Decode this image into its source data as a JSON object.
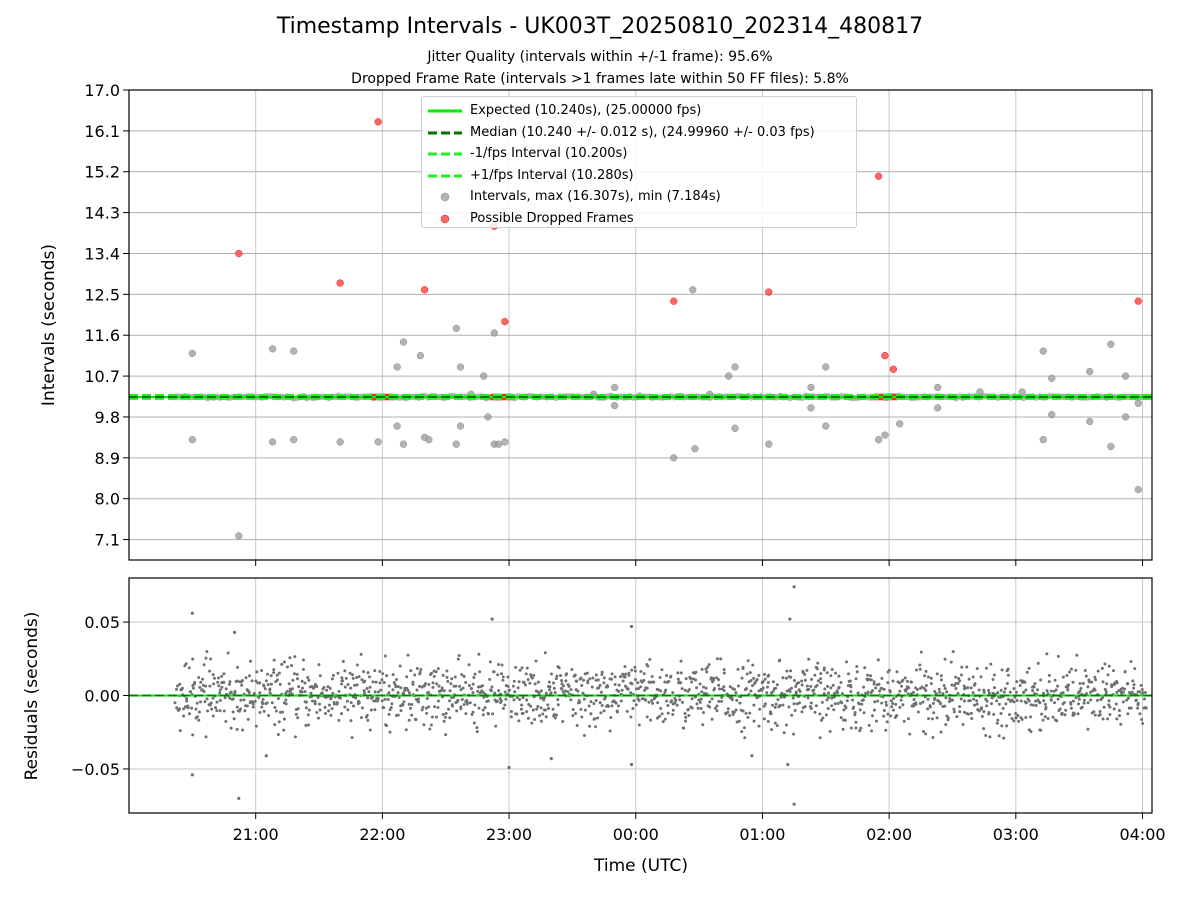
{
  "chart_data": [
    {
      "type": "scatter",
      "title": "Timestamp Intervals - UK003T_20250810_202314_480817",
      "subtitle_1": "Jitter Quality (intervals within +/-1 frame): 95.6%",
      "subtitle_2": "Dropped Frame Rate (intervals >1 frames late within 50 FF files): 5.8%",
      "ylabel": "Intervals (seconds)",
      "ylim": [
        6.65,
        17.0
      ],
      "yticks": [
        "7.1",
        "8.0",
        "8.9",
        "9.8",
        "10.7",
        "11.6",
        "12.5",
        "13.4",
        "14.3",
        "15.2",
        "16.1",
        "17.0"
      ],
      "grid": true,
      "legend_position": "top-center",
      "legend": [
        {
          "label": "Expected (10.240s), (25.00000 fps)",
          "style": "solid",
          "color": "#00ee00"
        },
        {
          "label": "Median (10.240 +/- 0.012 s), (24.99960 +/- 0.03 fps)",
          "style": "dashed",
          "color": "#007700"
        },
        {
          "label": "-1/fps Interval (10.200s)",
          "style": "dashed",
          "color": "#22ee22"
        },
        {
          "label": "+1/fps Interval (10.280s)",
          "style": "dashed",
          "color": "#22ee22"
        },
        {
          "label": "Intervals, max (16.307s), min (7.184s)",
          "style": "marker",
          "color": "#999999"
        },
        {
          "label": "Possible Dropped Frames",
          "style": "marker",
          "color": "#ff3333"
        }
      ],
      "lines": {
        "expected": 10.24,
        "median": 10.24,
        "minus_one": 10.2,
        "plus_one": 10.28
      },
      "series": [
        {
          "name": "Intervals, max (16.307s), min (7.184s)",
          "color": "#999999",
          "points": [
            [
              "20:30",
              11.2
            ],
            [
              "20:30",
              9.3
            ],
            [
              "20:52",
              7.18
            ],
            [
              "21:08",
              11.3
            ],
            [
              "21:08",
              9.25
            ],
            [
              "21:18",
              11.25
            ],
            [
              "21:18",
              9.3
            ],
            [
              "21:40",
              9.25
            ],
            [
              "21:58",
              9.25
            ],
            [
              "22:07",
              10.9
            ],
            [
              "22:07",
              9.6
            ],
            [
              "22:10",
              11.45
            ],
            [
              "22:10",
              9.2
            ],
            [
              "22:18",
              11.15
            ],
            [
              "22:20",
              9.35
            ],
            [
              "22:22",
              9.3
            ],
            [
              "22:35",
              11.75
            ],
            [
              "22:35",
              9.2
            ],
            [
              "22:37",
              10.9
            ],
            [
              "22:37",
              9.6
            ],
            [
              "22:42",
              10.3
            ],
            [
              "22:48",
              10.7
            ],
            [
              "22:50",
              9.8
            ],
            [
              "22:53",
              11.65
            ],
            [
              "22:53",
              9.2
            ],
            [
              "22:55",
              9.2
            ],
            [
              "22:58",
              9.25
            ],
            [
              "23:40",
              10.3
            ],
            [
              "23:50",
              10.45
            ],
            [
              "23:50",
              10.05
            ],
            [
              "00:18",
              8.9
            ],
            [
              "00:27",
              12.6
            ],
            [
              "00:28",
              9.1
            ],
            [
              "00:35",
              10.3
            ],
            [
              "00:44",
              10.7
            ],
            [
              "00:47",
              10.9
            ],
            [
              "00:47",
              9.55
            ],
            [
              "01:03",
              9.2
            ],
            [
              "01:23",
              10.0
            ],
            [
              "01:23",
              10.45
            ],
            [
              "01:30",
              10.9
            ],
            [
              "01:30",
              9.6
            ],
            [
              "01:55",
              9.3
            ],
            [
              "01:58",
              9.4
            ],
            [
              "02:05",
              9.65
            ],
            [
              "02:23",
              10.45
            ],
            [
              "02:23",
              10.0
            ],
            [
              "02:43",
              10.35
            ],
            [
              "03:03",
              10.35
            ],
            [
              "03:13",
              11.25
            ],
            [
              "03:13",
              9.3
            ],
            [
              "03:17",
              10.65
            ],
            [
              "03:17",
              9.85
            ],
            [
              "03:35",
              10.8
            ],
            [
              "03:35",
              9.7
            ],
            [
              "03:45",
              11.4
            ],
            [
              "03:45",
              9.15
            ],
            [
              "03:52",
              10.7
            ],
            [
              "03:52",
              9.8
            ],
            [
              "03:58",
              8.2
            ],
            [
              "03:58",
              10.1
            ]
          ]
        },
        {
          "name": "Possible Dropped Frames",
          "color": "#ff3333",
          "points": [
            [
              "20:52",
              13.4
            ],
            [
              "21:40",
              12.75
            ],
            [
              "21:58",
              16.3
            ],
            [
              "22:20",
              12.6
            ],
            [
              "22:53",
              14.0
            ],
            [
              "22:58",
              11.9
            ],
            [
              "00:18",
              12.35
            ],
            [
              "01:03",
              12.55
            ],
            [
              "01:55",
              15.1
            ],
            [
              "01:58",
              11.15
            ],
            [
              "02:02",
              10.85
            ],
            [
              "03:58",
              12.35
            ]
          ],
          "clusters": [
            [
              "21:55",
              "22:05"
            ],
            [
              "22:52",
              "23:02"
            ],
            [
              "01:53",
              "02:04"
            ]
          ]
        }
      ],
      "baseline_span": [
        "20:22",
        "04:02"
      ]
    },
    {
      "type": "scatter",
      "ylabel": "Residuals (seconds)",
      "xlabel": "Time (UTC)",
      "ylim": [
        -0.08,
        0.08
      ],
      "yticks": [
        "−0.05",
        "0.00",
        "0.05"
      ],
      "xticks": [
        "21:00",
        "22:00",
        "23:00",
        "00:00",
        "01:00",
        "02:00",
        "03:00",
        "04:00"
      ],
      "grid": true,
      "series": [
        {
          "name": "Residuals",
          "color": "#707070",
          "x_range": [
            "20:22",
            "04:02"
          ],
          "count": 1750,
          "typical_spread": 0.02,
          "outliers": [
            [
              "20:30",
              0.056
            ],
            [
              "20:30",
              -0.054
            ],
            [
              "20:50",
              0.043
            ],
            [
              "20:52",
              -0.07
            ],
            [
              "21:05",
              -0.041
            ],
            [
              "22:52",
              0.052
            ],
            [
              "23:00",
              -0.049
            ],
            [
              "23:20",
              -0.043
            ],
            [
              "23:58",
              0.047
            ],
            [
              "23:58",
              -0.047
            ],
            [
              "00:55",
              -0.041
            ],
            [
              "01:13",
              0.052
            ],
            [
              "01:15",
              0.074
            ],
            [
              "01:15",
              -0.074
            ],
            [
              "01:12",
              -0.047
            ]
          ]
        }
      ],
      "lines": {
        "expected": 0.0,
        "median": 0.0
      }
    }
  ]
}
